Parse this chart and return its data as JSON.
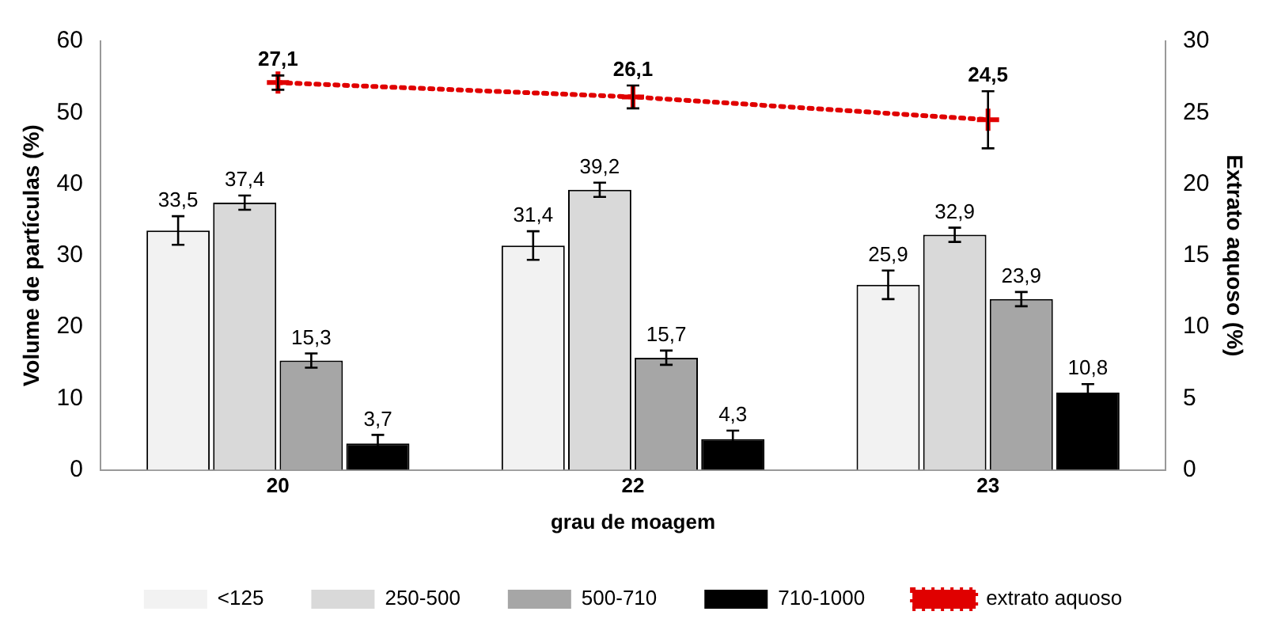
{
  "chart_data": {
    "type": "bar",
    "xlabel": "grau de moagem",
    "ylabel": "Volume de partículas (%)",
    "y2label": "Extrato aquoso (%)",
    "categories": [
      "20",
      "22",
      "23"
    ],
    "series": [
      {
        "name": "<125",
        "color": "#f2f2f2",
        "values": [
          33.5,
          31.4,
          25.9
        ],
        "errors": [
          2,
          2,
          2
        ],
        "value_labels": [
          "33,5",
          "31,4",
          "25,9"
        ]
      },
      {
        "name": "250-500",
        "color": "#d9d9d9",
        "values": [
          37.4,
          39.2,
          32.9
        ],
        "errors": [
          1,
          1,
          1
        ],
        "value_labels": [
          "37,4",
          "39,2",
          "32,9"
        ]
      },
      {
        "name": "500-710",
        "color": "#a6a6a6",
        "values": [
          15.3,
          15.7,
          23.9
        ],
        "errors": [
          1,
          1,
          1
        ],
        "value_labels": [
          "15,3",
          "15,7",
          "23,9"
        ]
      },
      {
        "name": "710-1000",
        "color": "#000000",
        "values": [
          3.7,
          4.3,
          10.8
        ],
        "errors": [
          1.2,
          1.2,
          1.2
        ],
        "value_labels": [
          "3,7",
          "4,3",
          "10,8"
        ]
      },
      {
        "name": "extrato aquoso",
        "type": "line",
        "axis": "y2",
        "color": "#e00000",
        "marker": "cross",
        "line_style": "dotted",
        "values": [
          27.1,
          26.1,
          24.5
        ],
        "errors": [
          0.5,
          0.8,
          2
        ],
        "value_labels": [
          "27,1",
          "26,1",
          "24,5"
        ]
      }
    ],
    "ylim": [
      0,
      60
    ],
    "yticks": [
      0,
      10,
      20,
      30,
      40,
      50,
      60
    ],
    "y2lim": [
      0,
      30
    ],
    "y2ticks": [
      0,
      5,
      10,
      15,
      20,
      25,
      30
    ],
    "grid": false,
    "legend": "bottom"
  }
}
